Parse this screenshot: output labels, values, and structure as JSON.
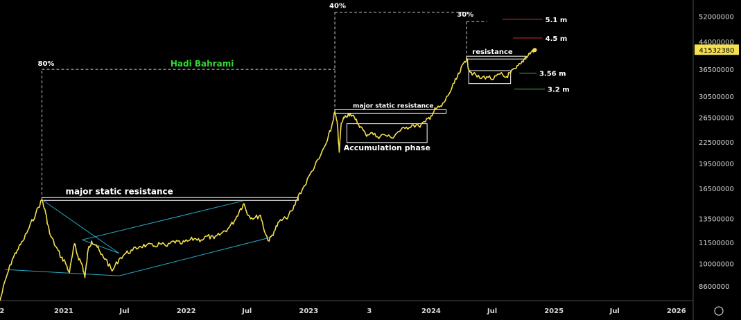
{
  "chart_data": {
    "type": "line",
    "title": "",
    "author_tag": "Hadi Bahrami",
    "scale": "log",
    "ylim": [
      7800000,
      58000000
    ],
    "xlim": [
      "2020-06-25",
      "2026-02-20"
    ],
    "grid": false,
    "y_ticks": [
      {
        "value": 8600000,
        "label": "8600000"
      },
      {
        "value": 10000000,
        "label": "10000000"
      },
      {
        "value": 11500000,
        "label": "11500000"
      },
      {
        "value": 13500000,
        "label": "13500000"
      },
      {
        "value": 16500000,
        "label": "16500000"
      },
      {
        "value": 19500000,
        "label": "19500000"
      },
      {
        "value": 22500000,
        "label": "22500000"
      },
      {
        "value": 26500000,
        "label": "26500000"
      },
      {
        "value": 30500000,
        "label": "30500000"
      },
      {
        "value": 36500000,
        "label": "36500000"
      },
      {
        "value": 44000000,
        "label": "44000000"
      },
      {
        "value": 52000000,
        "label": "52000000"
      }
    ],
    "x_ticks": [
      {
        "date": "2020-07-01",
        "label": "2"
      },
      {
        "date": "2021-01-01",
        "label": "2021"
      },
      {
        "date": "2021-07-01",
        "label": "Jul"
      },
      {
        "date": "2022-01-01",
        "label": "2022"
      },
      {
        "date": "2022-07-01",
        "label": "Jul"
      },
      {
        "date": "2023-01-01",
        "label": "2023"
      },
      {
        "date": "2023-07-01",
        "label": "3"
      },
      {
        "date": "2024-01-01",
        "label": "2024"
      },
      {
        "date": "2024-07-01",
        "label": "Jul"
      },
      {
        "date": "2025-01-01",
        "label": "2025"
      },
      {
        "date": "2025-07-01",
        "label": "Jul"
      },
      {
        "date": "2026-01-01",
        "label": "2026"
      }
    ],
    "series": [
      {
        "color": "#f5e050",
        "points": [
          [
            "2020-06-25",
            7800000
          ],
          [
            "2020-07-12",
            9000000
          ],
          [
            "2020-08-01",
            10300000
          ],
          [
            "2020-08-15",
            10900000
          ],
          [
            "2020-09-01",
            11600000
          ],
          [
            "2020-09-20",
            12700000
          ],
          [
            "2020-10-10",
            14000000
          ],
          [
            "2020-10-28",
            15300000
          ],
          [
            "2020-11-08",
            14000000
          ],
          [
            "2020-11-20",
            12200000
          ],
          [
            "2020-12-08",
            11200000
          ],
          [
            "2020-12-25",
            10400000
          ],
          [
            "2021-01-05",
            10100000
          ],
          [
            "2021-01-18",
            9400000
          ],
          [
            "2021-02-02",
            11400000
          ],
          [
            "2021-02-12",
            10500000
          ],
          [
            "2021-02-25",
            9900000
          ],
          [
            "2021-03-05",
            9100000
          ],
          [
            "2021-03-15",
            11000000
          ],
          [
            "2021-03-25",
            11600000
          ],
          [
            "2021-04-08",
            11300000
          ],
          [
            "2021-04-22",
            10600000
          ],
          [
            "2021-05-06",
            10300000
          ],
          [
            "2021-05-25",
            9500000
          ],
          [
            "2021-06-15",
            10300000
          ],
          [
            "2021-07-05",
            10700000
          ],
          [
            "2021-07-25",
            10900000
          ],
          [
            "2021-08-15",
            11200000
          ],
          [
            "2021-09-05",
            11300000
          ],
          [
            "2021-09-25",
            11200000
          ],
          [
            "2021-10-15",
            11400000
          ],
          [
            "2021-11-05",
            11200000
          ],
          [
            "2021-11-25",
            11600000
          ],
          [
            "2021-12-15",
            11400000
          ],
          [
            "2022-01-05",
            11600000
          ],
          [
            "2022-01-25",
            11800000
          ],
          [
            "2022-02-15",
            11700000
          ],
          [
            "2022-03-05",
            12000000
          ],
          [
            "2022-03-25",
            11800000
          ],
          [
            "2022-04-15",
            12200000
          ],
          [
            "2022-05-05",
            12600000
          ],
          [
            "2022-05-25",
            13300000
          ],
          [
            "2022-06-10",
            14300000
          ],
          [
            "2022-06-22",
            14900000
          ],
          [
            "2022-07-05",
            13800000
          ],
          [
            "2022-07-22",
            13500000
          ],
          [
            "2022-08-10",
            13800000
          ],
          [
            "2022-08-25",
            12200000
          ],
          [
            "2022-09-05",
            11600000
          ],
          [
            "2022-09-20",
            12400000
          ],
          [
            "2022-10-05",
            13200000
          ],
          [
            "2022-10-25",
            13500000
          ],
          [
            "2022-11-15",
            14300000
          ],
          [
            "2022-12-01",
            15700000
          ],
          [
            "2022-12-20",
            16800000
          ],
          [
            "2023-01-10",
            18500000
          ],
          [
            "2023-02-01",
            20100000
          ],
          [
            "2023-02-25",
            22600000
          ],
          [
            "2023-03-10",
            24800000
          ],
          [
            "2023-03-20",
            27500000
          ],
          [
            "2023-03-28",
            25000000
          ],
          [
            "2023-04-02",
            21000000
          ],
          [
            "2023-04-08",
            25500000
          ],
          [
            "2023-04-20",
            26800000
          ],
          [
            "2023-05-05",
            27200000
          ],
          [
            "2023-05-20",
            26100000
          ],
          [
            "2023-06-05",
            24900000
          ],
          [
            "2023-06-20",
            23600000
          ],
          [
            "2023-07-05",
            23900000
          ],
          [
            "2023-07-25",
            23300000
          ],
          [
            "2023-08-15",
            23600000
          ],
          [
            "2023-09-05",
            23100000
          ],
          [
            "2023-09-25",
            24100000
          ],
          [
            "2023-10-15",
            24600000
          ],
          [
            "2023-11-05",
            25200000
          ],
          [
            "2023-11-25",
            25000000
          ],
          [
            "2023-12-15",
            25700000
          ],
          [
            "2024-01-01",
            26800000
          ],
          [
            "2024-01-15",
            28100000
          ],
          [
            "2024-02-01",
            28500000
          ],
          [
            "2024-02-20",
            30600000
          ],
          [
            "2024-03-10",
            33300000
          ],
          [
            "2024-03-25",
            35500000
          ],
          [
            "2024-04-08",
            38200000
          ],
          [
            "2024-04-16",
            39300000
          ],
          [
            "2024-04-22",
            36600000
          ],
          [
            "2024-05-05",
            35400000
          ],
          [
            "2024-05-25",
            34400000
          ],
          [
            "2024-06-15",
            34800000
          ],
          [
            "2024-07-05",
            34200000
          ],
          [
            "2024-07-25",
            35400000
          ],
          [
            "2024-08-10",
            34600000
          ],
          [
            "2024-08-25",
            35700000
          ],
          [
            "2024-09-10",
            36700000
          ],
          [
            "2024-09-25",
            38000000
          ],
          [
            "2024-10-10",
            39800000
          ],
          [
            "2024-10-25",
            41000000
          ],
          [
            "2024-11-05",
            41532380
          ]
        ]
      }
    ],
    "last_value": {
      "value": 41532380,
      "label": "41532380"
    },
    "annotations": {
      "resistance_main_label": "major static resistance",
      "resistance_2023_label": "major static resistance",
      "resistance_2024_label": "resistance",
      "accumulation_label": "Accumulation phase",
      "pct_80": "80%",
      "pct_40": "40%",
      "pct_30": "30%",
      "targets": [
        {
          "value": 51000000,
          "label": "5.1 m",
          "color": "#d43030"
        },
        {
          "value": 45000000,
          "label": "4.5 m",
          "color": "#d43030"
        },
        {
          "value": 35600000,
          "label": "3.56 m",
          "color": "#3fbf3f"
        },
        {
          "value": 32000000,
          "label": "3.2 m",
          "color": "#3fbf3f"
        }
      ]
    },
    "colors": {
      "price": "#f5e050",
      "channel": "#2aa8c4",
      "author": "#30d830",
      "last_price_bg": "#f5e050"
    }
  }
}
